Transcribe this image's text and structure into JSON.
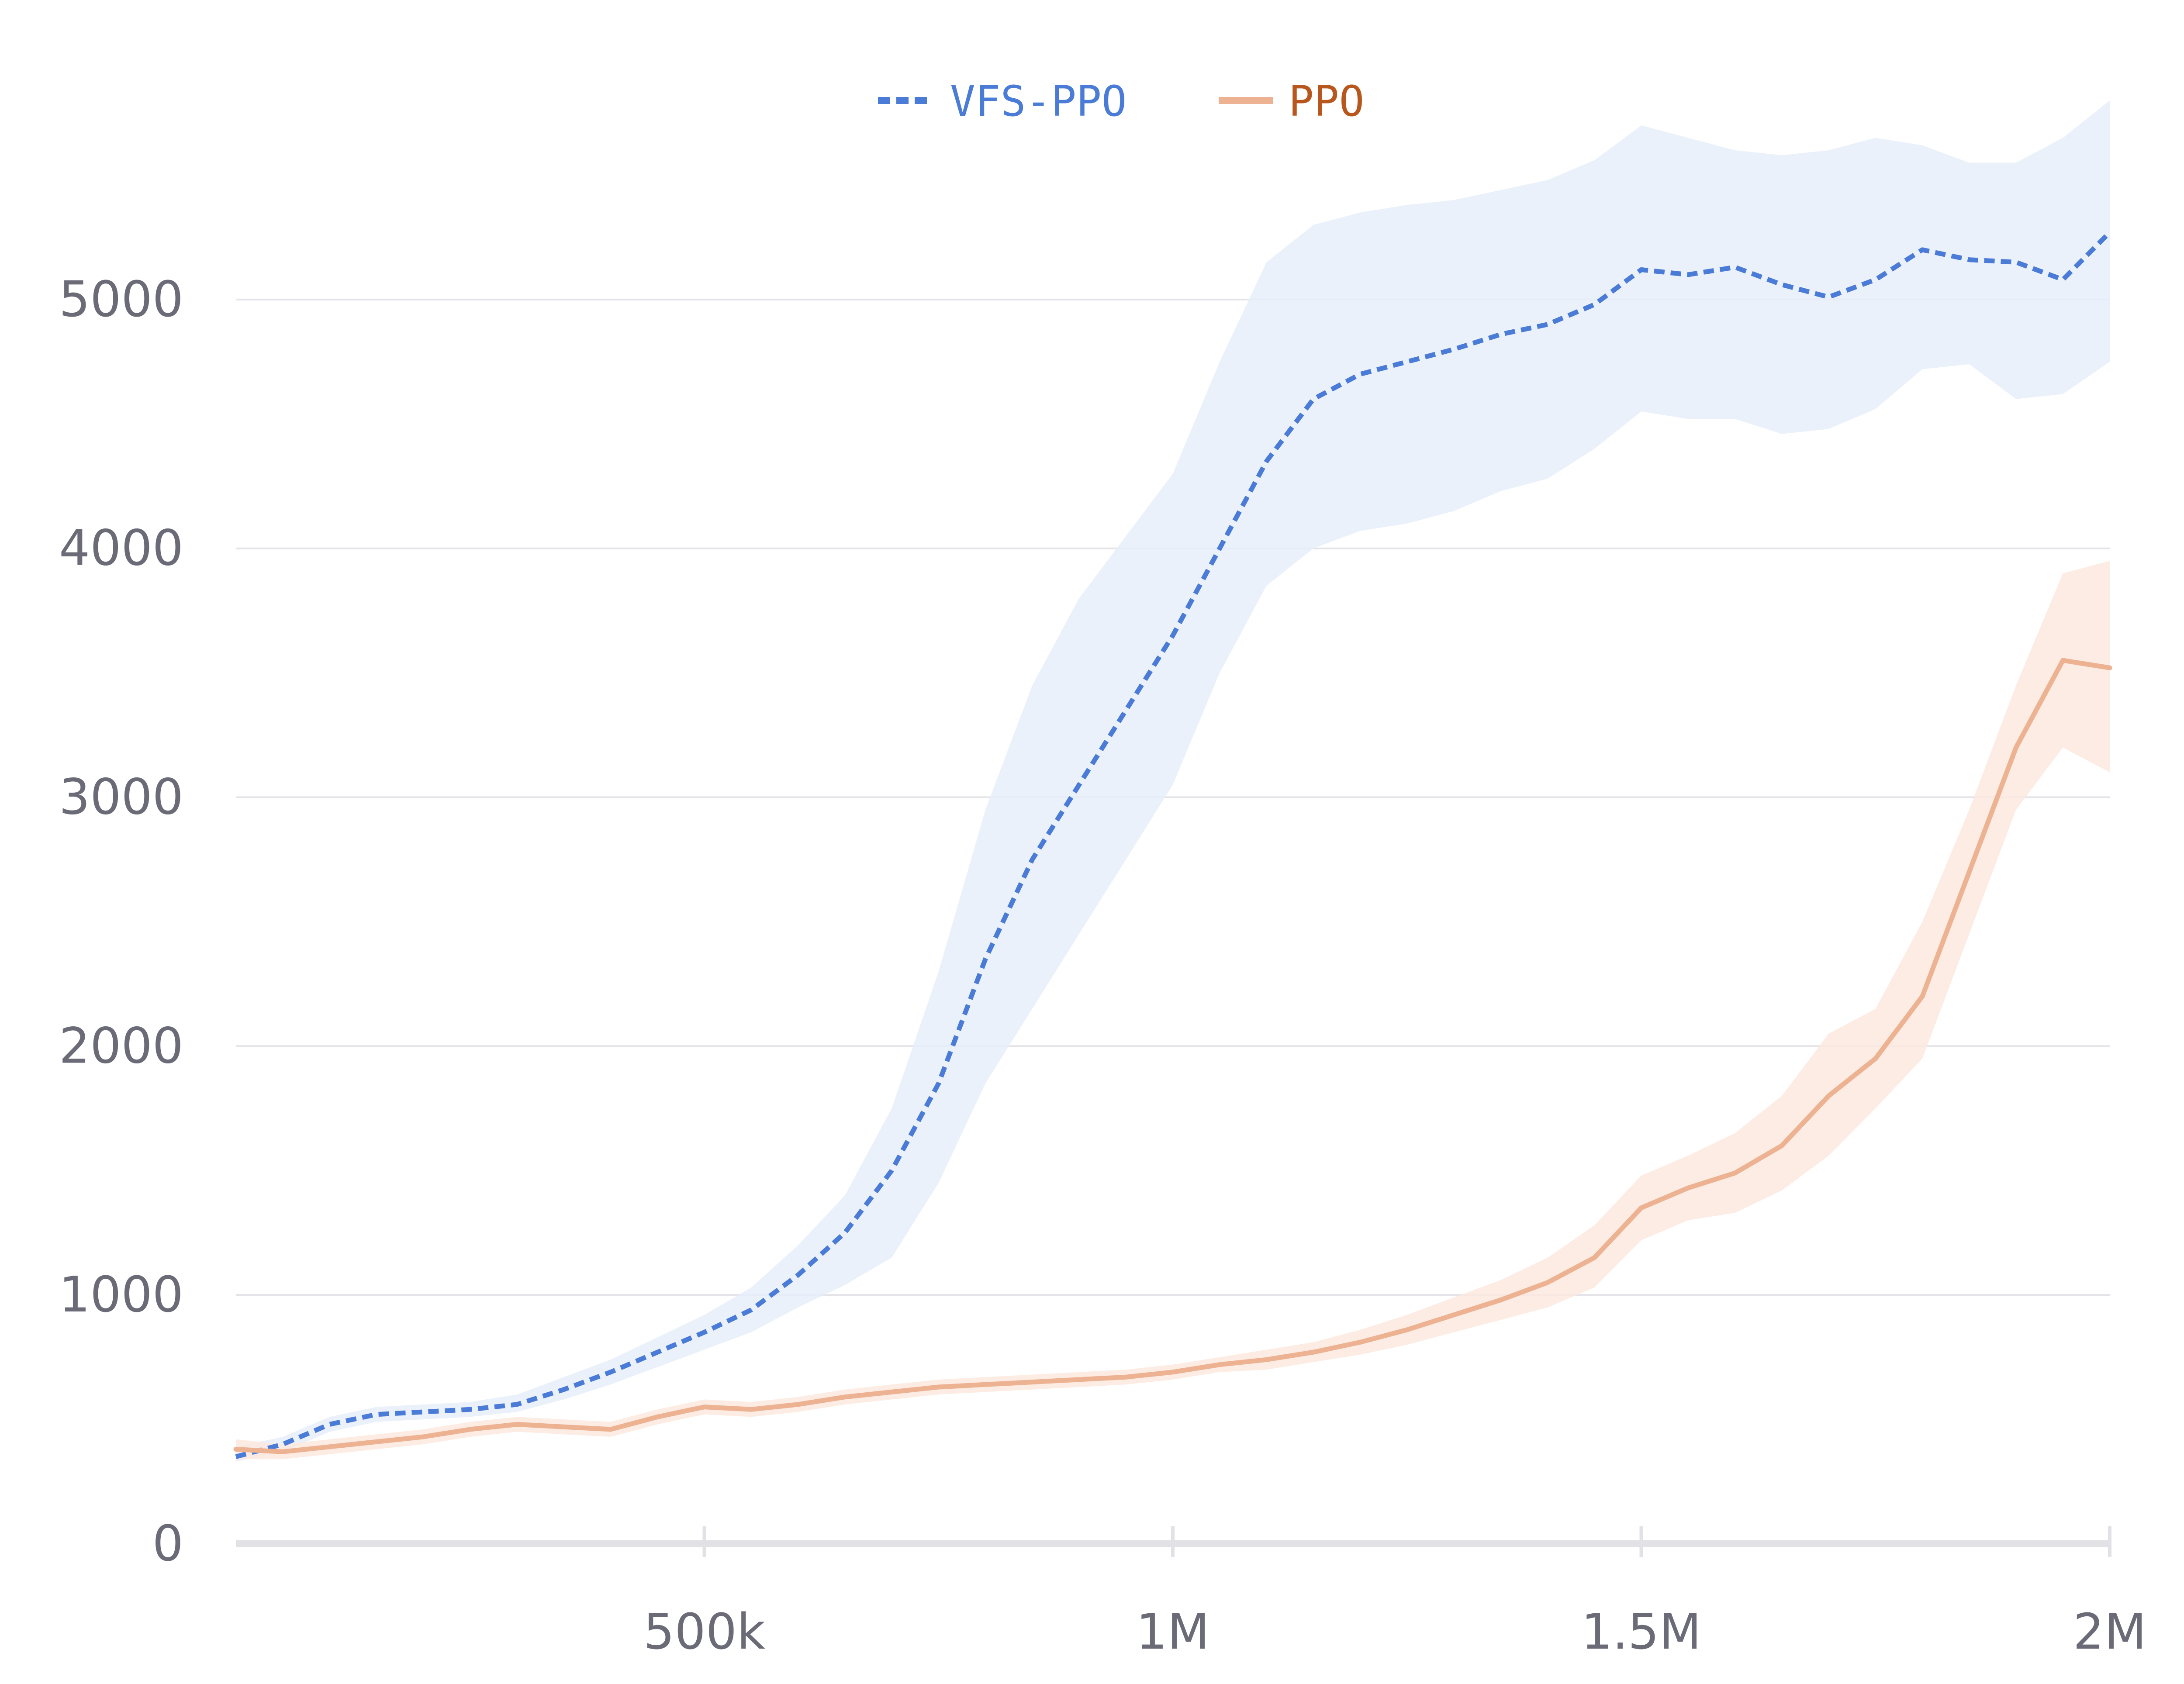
{
  "chart_data": {
    "type": "line",
    "title": "",
    "xlabel": "",
    "ylabel": "",
    "xlim": [
      0,
      2000000
    ],
    "ylim": [
      0,
      5800
    ],
    "xticks": [
      {
        "value": 500000,
        "label": "500k"
      },
      {
        "value": 1000000,
        "label": "1M"
      },
      {
        "value": 1500000,
        "label": "1.5M"
      },
      {
        "value": 2000000,
        "label": "2M"
      }
    ],
    "yticks": [
      {
        "value": 0,
        "label": "0"
      },
      {
        "value": 1000,
        "label": "1000"
      },
      {
        "value": 2000,
        "label": "2000"
      },
      {
        "value": 3000,
        "label": "3000"
      },
      {
        "value": 4000,
        "label": "4000"
      },
      {
        "value": 5000,
        "label": "5000"
      }
    ],
    "grid": true,
    "legend_position": "top-center",
    "series": [
      {
        "name": "VFS-PPO",
        "color": "#4a7bd6",
        "text_color": "#4a7bd6",
        "band_color": "#e8effa",
        "style": "dashed",
        "x": [
          0,
          50000,
          100000,
          150000,
          200000,
          250000,
          300000,
          350000,
          400000,
          450000,
          500000,
          550000,
          600000,
          650000,
          700000,
          750000,
          800000,
          850000,
          900000,
          950000,
          1000000,
          1050000,
          1100000,
          1150000,
          1200000,
          1250000,
          1300000,
          1350000,
          1400000,
          1450000,
          1500000,
          1550000,
          1600000,
          1650000,
          1700000,
          1750000,
          1800000,
          1850000,
          1900000,
          1950000,
          2000000
        ],
        "y": [
          350,
          400,
          480,
          520,
          530,
          540,
          560,
          620,
          690,
          770,
          850,
          940,
          1080,
          1250,
          1500,
          1850,
          2350,
          2750,
          3050,
          3350,
          3650,
          4000,
          4350,
          4600,
          4700,
          4750,
          4800,
          4860,
          4900,
          4980,
          5120,
          5100,
          5130,
          5060,
          5010,
          5080,
          5200,
          5160,
          5150,
          5080,
          5270
        ],
        "upper": [
          390,
          430,
          510,
          550,
          560,
          570,
          600,
          670,
          740,
          830,
          920,
          1030,
          1200,
          1400,
          1750,
          2300,
          2950,
          3450,
          3800,
          4050,
          4300,
          4750,
          5150,
          5300,
          5350,
          5380,
          5400,
          5440,
          5480,
          5560,
          5700,
          5650,
          5600,
          5580,
          5600,
          5650,
          5620,
          5550,
          5550,
          5650,
          5800
        ],
        "lower": [
          330,
          370,
          450,
          490,
          500,
          510,
          530,
          580,
          640,
          710,
          780,
          850,
          950,
          1040,
          1150,
          1450,
          1850,
          2150,
          2450,
          2750,
          3050,
          3500,
          3850,
          4000,
          4070,
          4100,
          4150,
          4230,
          4280,
          4400,
          4550,
          4520,
          4520,
          4460,
          4480,
          4560,
          4720,
          4740,
          4600,
          4620,
          4750
        ]
      },
      {
        "name": "PPO",
        "color": "#edb291",
        "text_color": "#b8571d",
        "band_color": "#fbe9df",
        "style": "solid",
        "x": [
          0,
          50000,
          100000,
          150000,
          200000,
          250000,
          300000,
          350000,
          400000,
          450000,
          500000,
          550000,
          600000,
          650000,
          700000,
          750000,
          800000,
          850000,
          900000,
          950000,
          1000000,
          1050000,
          1100000,
          1150000,
          1200000,
          1250000,
          1300000,
          1350000,
          1400000,
          1450000,
          1500000,
          1550000,
          1600000,
          1650000,
          1700000,
          1750000,
          1800000,
          1850000,
          1900000,
          1950000,
          2000000
        ],
        "y": [
          380,
          370,
          390,
          410,
          430,
          460,
          480,
          470,
          460,
          510,
          550,
          540,
          560,
          590,
          610,
          630,
          640,
          650,
          660,
          670,
          690,
          720,
          740,
          770,
          810,
          860,
          920,
          980,
          1050,
          1150,
          1350,
          1430,
          1490,
          1600,
          1800,
          1950,
          2200,
          2700,
          3200,
          3550,
          3520
        ],
        "upper": [
          420,
          400,
          420,
          440,
          460,
          490,
          510,
          500,
          490,
          540,
          580,
          570,
          590,
          620,
          640,
          660,
          670,
          680,
          690,
          700,
          720,
          750,
          780,
          810,
          860,
          920,
          990,
          1060,
          1150,
          1280,
          1480,
          1560,
          1650,
          1800,
          2050,
          2150,
          2500,
          2950,
          3450,
          3900,
          3950
        ],
        "lower": [
          340,
          340,
          360,
          380,
          400,
          430,
          450,
          440,
          430,
          480,
          520,
          510,
          530,
          560,
          580,
          600,
          610,
          620,
          630,
          640,
          660,
          690,
          700,
          730,
          760,
          800,
          850,
          900,
          950,
          1030,
          1220,
          1300,
          1330,
          1420,
          1560,
          1750,
          1950,
          2450,
          2950,
          3200,
          3100
        ]
      }
    ]
  }
}
